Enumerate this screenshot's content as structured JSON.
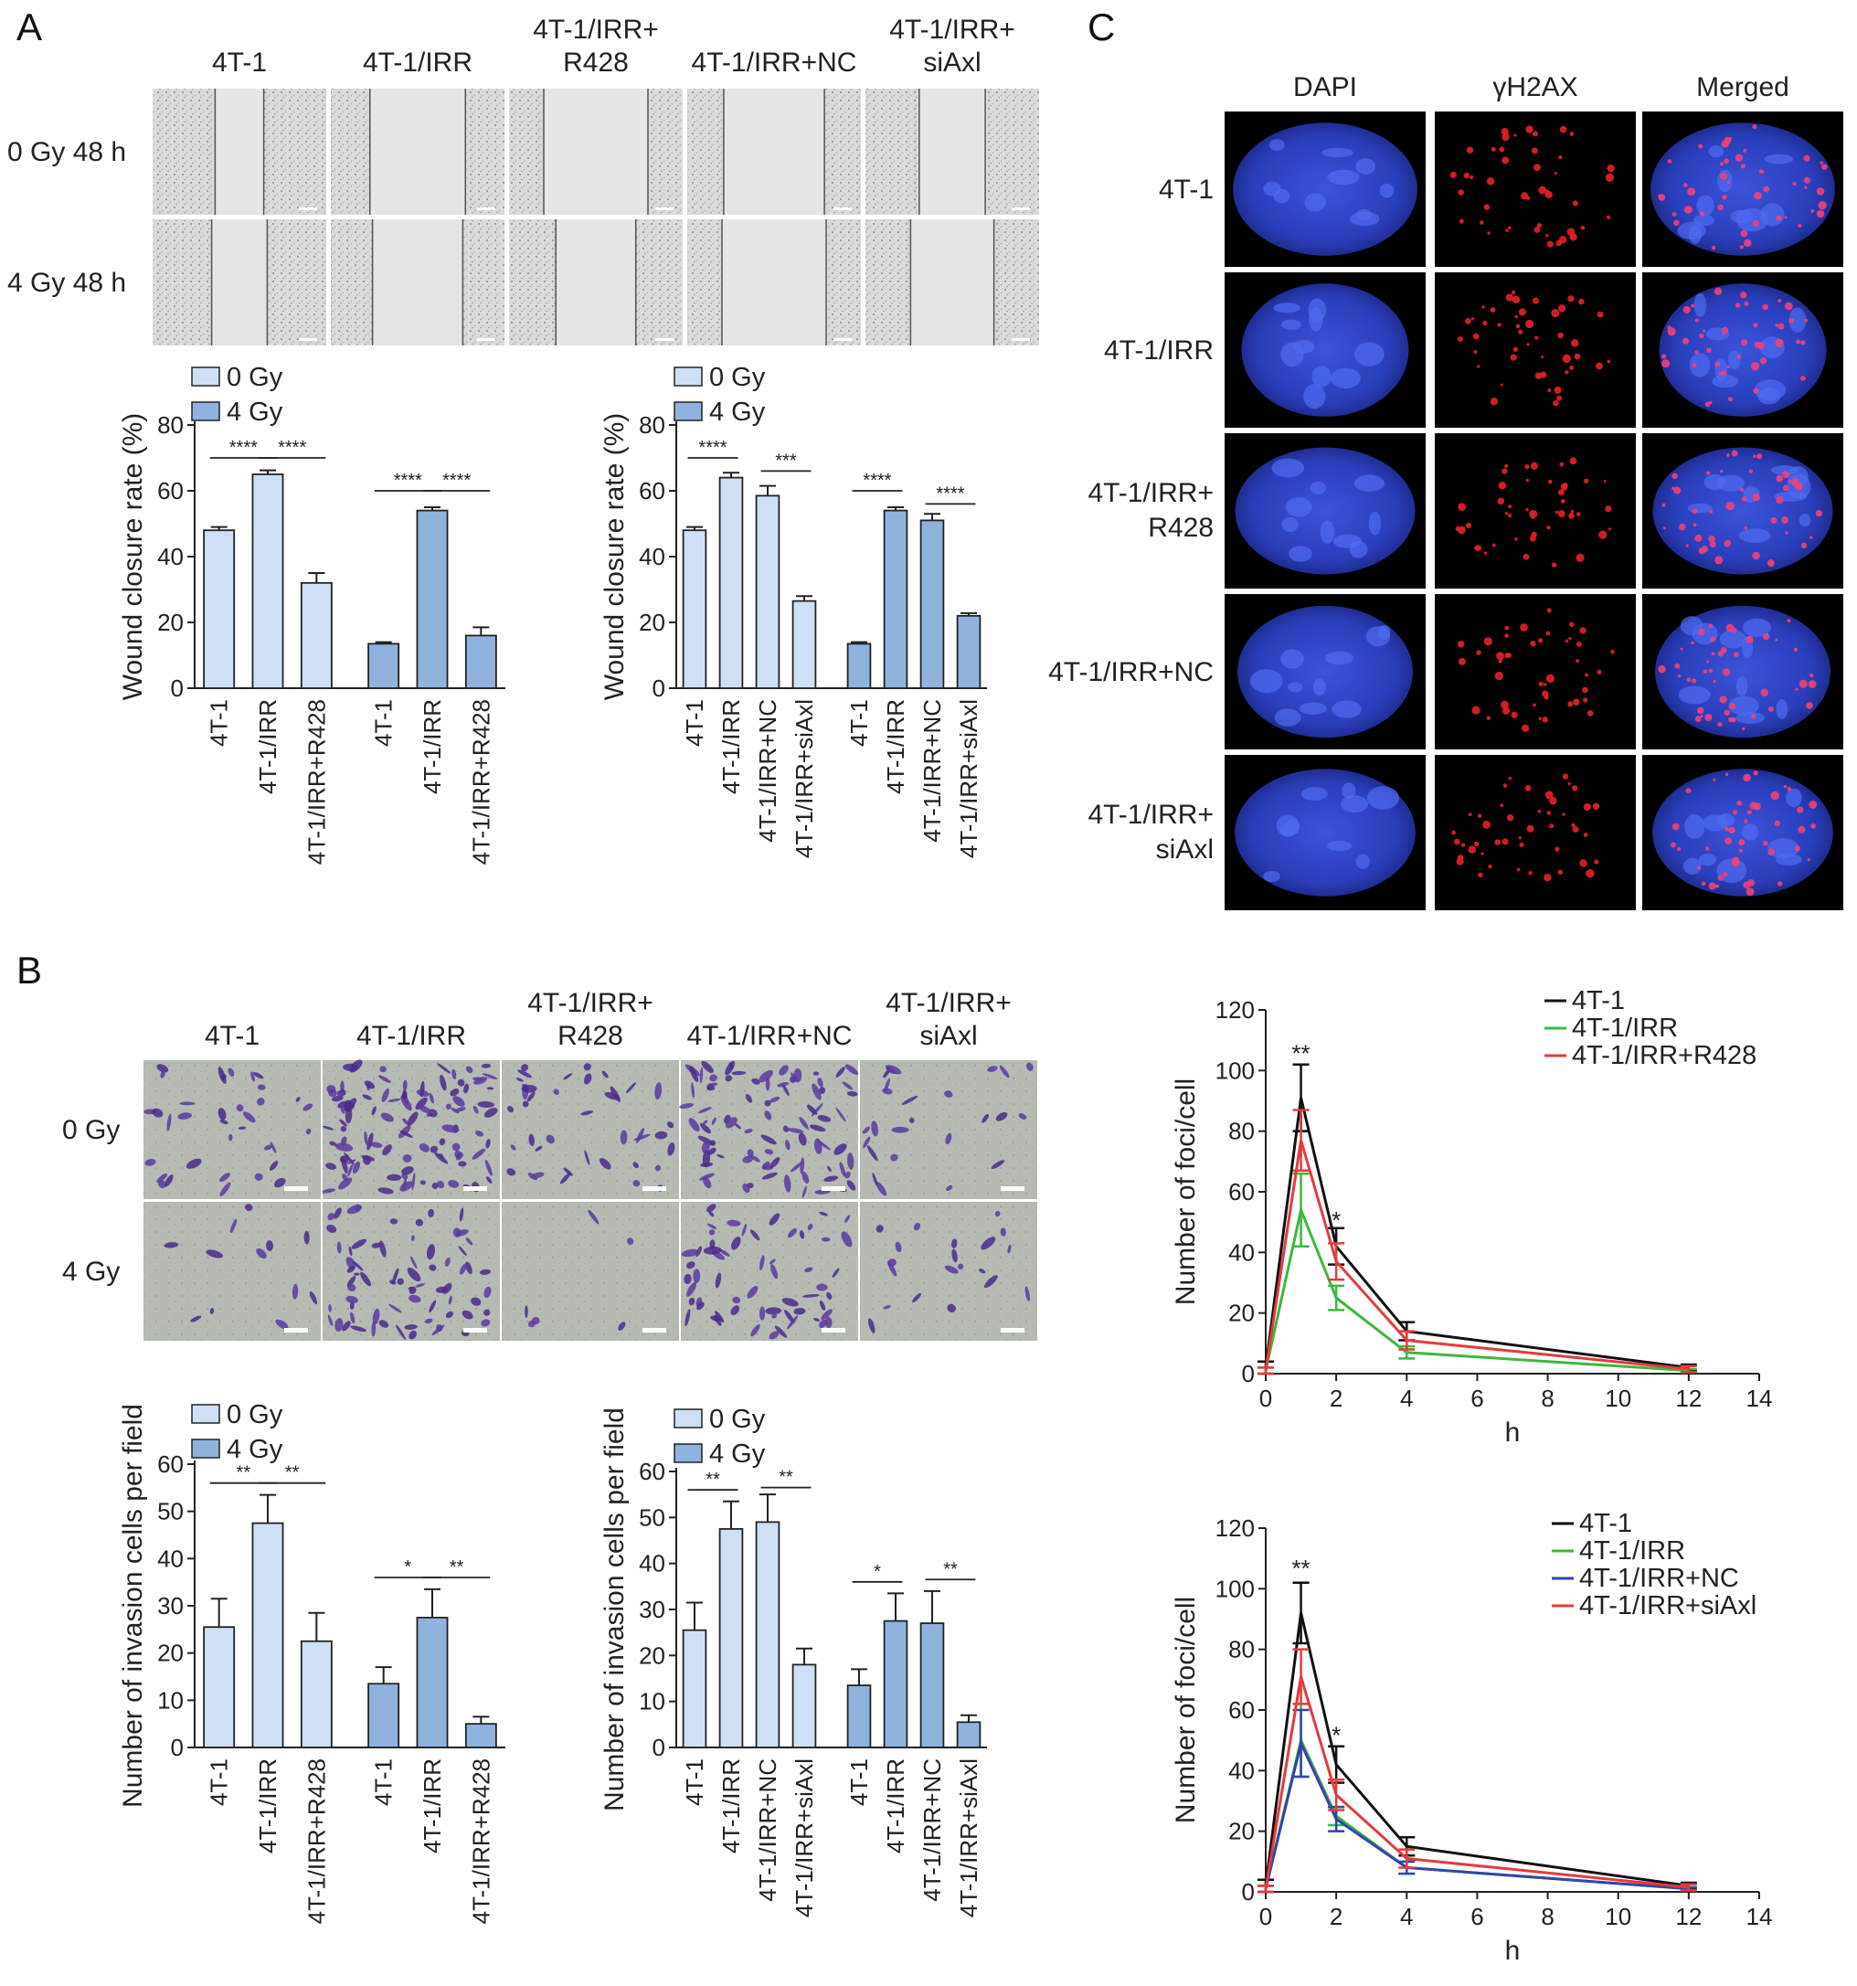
{
  "panel_letters": {
    "a": "A",
    "b": "B",
    "c": "C"
  },
  "panelA": {
    "columns": [
      "4T-1",
      "4T-1/IRR",
      "4T-1/IRR+\nR428",
      "4T-1/IRR+NC",
      "4T-1/IRR+\nsiAxl"
    ],
    "rows": [
      "0 Gy 48 h",
      "4 Gy 48 h"
    ]
  },
  "panelB": {
    "columns": [
      "4T-1",
      "4T-1/IRR",
      "4T-1/IRR+\nR428",
      "4T-1/IRR+NC",
      "4T-1/IRR+\nsiAxl"
    ],
    "rows": [
      "0 Gy",
      "4 Gy"
    ]
  },
  "panelC": {
    "columns": [
      "DAPI",
      "γH2AX",
      "Merged"
    ],
    "rows": [
      "4T-1",
      "4T-1/IRR",
      "4T-1/IRR+\nR428",
      "4T-1/IRR+NC",
      "4T-1/IRR+\nsiAxl"
    ]
  },
  "colors": {
    "gy0": "#cfe0f4",
    "gy4": "#8fb3dd",
    "black": "#111111",
    "green": "#3cb83c",
    "red": "#e53b3b",
    "blue": "#3344aa"
  },
  "chart_data": [
    {
      "id": "A1",
      "type": "bar",
      "ylabel": "Wound closure rate (%)",
      "ylim": [
        0,
        80
      ],
      "yticks": [
        0,
        20,
        40,
        60,
        80
      ],
      "legend": [
        "0 Gy",
        "4 Gy"
      ],
      "categories": [
        "4T-1",
        "4T-1/IRR",
        "4T-1/IRR+R428",
        "4T-1",
        "4T-1/IRR",
        "4T-1/IRR+R428"
      ],
      "group": [
        0,
        0,
        0,
        1,
        1,
        1
      ],
      "values": [
        48,
        65,
        32,
        13.5,
        54,
        16
      ],
      "errors": [
        1,
        1.2,
        3,
        0.5,
        1,
        2.5
      ],
      "sig": [
        {
          "from": 0,
          "to": 1,
          "text": "****",
          "y": 70
        },
        {
          "from": 1,
          "to": 2,
          "text": "****",
          "y": 70
        },
        {
          "from": 3,
          "to": 4,
          "text": "****",
          "y": 60
        },
        {
          "from": 4,
          "to": 5,
          "text": "****",
          "y": 60
        }
      ]
    },
    {
      "id": "A2",
      "type": "bar",
      "ylabel": "Wound closure rate (%)",
      "ylim": [
        0,
        80
      ],
      "yticks": [
        0,
        20,
        40,
        60,
        80
      ],
      "legend": [
        "0 Gy",
        "4 Gy"
      ],
      "categories": [
        "4T-1",
        "4T-1/IRR",
        "4T-1/IRR+NC",
        "4T-1/IRR+siAxl",
        "4T-1",
        "4T-1/IRR",
        "4T-1/IRR+NC",
        "4T-1/IRR+siAxl"
      ],
      "group": [
        0,
        0,
        0,
        0,
        1,
        1,
        1,
        1
      ],
      "values": [
        48,
        64,
        58.5,
        26.5,
        13.5,
        54,
        51,
        22
      ],
      "errors": [
        1,
        1.5,
        3,
        1.5,
        0.5,
        1,
        2,
        0.8
      ],
      "sig": [
        {
          "from": 0,
          "to": 1,
          "text": "****",
          "y": 70
        },
        {
          "from": 2,
          "to": 3,
          "text": "***",
          "y": 66
        },
        {
          "from": 4,
          "to": 5,
          "text": "****",
          "y": 60
        },
        {
          "from": 6,
          "to": 7,
          "text": "****",
          "y": 56
        }
      ]
    },
    {
      "id": "B1",
      "type": "bar",
      "ylabel": "Number of invasion cells per field",
      "ylim": [
        0,
        60
      ],
      "yticks": [
        0,
        10,
        20,
        30,
        40,
        50,
        60
      ],
      "legend": [
        "0 Gy",
        "4 Gy"
      ],
      "categories": [
        "4T-1",
        "4T-1/IRR",
        "4T-1/IRR+R428",
        "4T-1",
        "4T-1/IRR",
        "4T-1/IRR+R428"
      ],
      "group": [
        0,
        0,
        0,
        1,
        1,
        1
      ],
      "values": [
        25.5,
        47.5,
        22.5,
        13.5,
        27.5,
        5
      ],
      "errors": [
        6,
        6,
        6,
        3.5,
        6,
        1.5
      ],
      "sig": [
        {
          "from": 0,
          "to": 1,
          "text": "**",
          "y": 56
        },
        {
          "from": 1,
          "to": 2,
          "text": "**",
          "y": 56
        },
        {
          "from": 3,
          "to": 4,
          "text": "*",
          "y": 36
        },
        {
          "from": 4,
          "to": 5,
          "text": "**",
          "y": 36
        }
      ]
    },
    {
      "id": "B2",
      "type": "bar",
      "ylabel": "Number of invasion cells per field",
      "ylim": [
        0,
        60
      ],
      "yticks": [
        0,
        10,
        20,
        30,
        40,
        50,
        60
      ],
      "legend": [
        "0 Gy",
        "4 Gy"
      ],
      "categories": [
        "4T-1",
        "4T-1/IRR",
        "4T-1/IRR+NC",
        "4T-1/IRR+siAxl",
        "4T-1",
        "4T-1/IRR",
        "4T-1/IRR+NC",
        "4T-1/IRR+siAxl"
      ],
      "group": [
        0,
        0,
        0,
        0,
        1,
        1,
        1,
        1
      ],
      "values": [
        25.5,
        47.5,
        49,
        18,
        13.5,
        27.5,
        27,
        5.5
      ],
      "errors": [
        6,
        6,
        6,
        3.5,
        3.5,
        6,
        7,
        1.5
      ],
      "sig": [
        {
          "from": 0,
          "to": 1,
          "text": "**",
          "y": 56
        },
        {
          "from": 2,
          "to": 3,
          "text": "**",
          "y": 56.5
        },
        {
          "from": 4,
          "to": 5,
          "text": "*",
          "y": 36
        },
        {
          "from": 6,
          "to": 7,
          "text": "**",
          "y": 36.5
        }
      ]
    },
    {
      "id": "C1",
      "type": "line",
      "xlabel": "h",
      "ylabel": "Number of foci/cell",
      "xlim": [
        0,
        14
      ],
      "ylim": [
        0,
        120
      ],
      "xticks": [
        0,
        2,
        4,
        6,
        8,
        10,
        12,
        14
      ],
      "yticks": [
        0,
        20,
        40,
        60,
        80,
        100,
        120
      ],
      "x": [
        0,
        1,
        2,
        4,
        12
      ],
      "series": [
        {
          "name": "4T-1",
          "color": "#111111",
          "values": [
            2,
            91,
            42,
            14,
            2
          ],
          "errors": [
            2,
            11,
            6,
            3,
            1
          ]
        },
        {
          "name": "4T-1/IRR",
          "color": "#3cb83c",
          "values": [
            1,
            54,
            25,
            7,
            1
          ],
          "errors": [
            1,
            12,
            4,
            2,
            0.5
          ]
        },
        {
          "name": "4T-1/IRR+R428",
          "color": "#e53b3b",
          "values": [
            1,
            77,
            37,
            11,
            1.5
          ],
          "errors": [
            1,
            10,
            6,
            3,
            1
          ]
        }
      ],
      "annotations": [
        {
          "x": 1,
          "y": 103,
          "text": "**"
        },
        {
          "x": 2,
          "y": 48,
          "text": "*"
        }
      ]
    },
    {
      "id": "C2",
      "type": "line",
      "xlabel": "h",
      "ylabel": "Number of foci/cell",
      "xlim": [
        0,
        14
      ],
      "ylim": [
        0,
        120
      ],
      "xticks": [
        0,
        2,
        4,
        6,
        8,
        10,
        12,
        14
      ],
      "yticks": [
        0,
        20,
        40,
        60,
        80,
        100,
        120
      ],
      "x": [
        0,
        1,
        2,
        4,
        12
      ],
      "series": [
        {
          "name": "4T-1",
          "color": "#111111",
          "values": [
            2,
            92,
            42,
            15,
            2
          ],
          "errors": [
            2,
            10,
            6,
            3,
            1
          ]
        },
        {
          "name": "4T-1/IRR",
          "color": "#3cb83c",
          "values": [
            1,
            50,
            25,
            8,
            1
          ],
          "errors": [
            1,
            12,
            3,
            2,
            0.5
          ]
        },
        {
          "name": "4T-1/IRR+NC",
          "color": "#3344aa",
          "values": [
            1,
            49,
            24,
            8,
            1
          ],
          "errors": [
            1,
            11,
            4,
            2,
            0.5
          ]
        },
        {
          "name": "4T-1/IRR+siAxl",
          "color": "#e53b3b",
          "values": [
            1,
            71,
            32,
            11,
            1.5
          ],
          "errors": [
            1,
            9,
            5,
            3,
            1
          ]
        }
      ],
      "annotations": [
        {
          "x": 1,
          "y": 104,
          "text": "**"
        },
        {
          "x": 2,
          "y": 49,
          "text": "*"
        }
      ]
    }
  ]
}
